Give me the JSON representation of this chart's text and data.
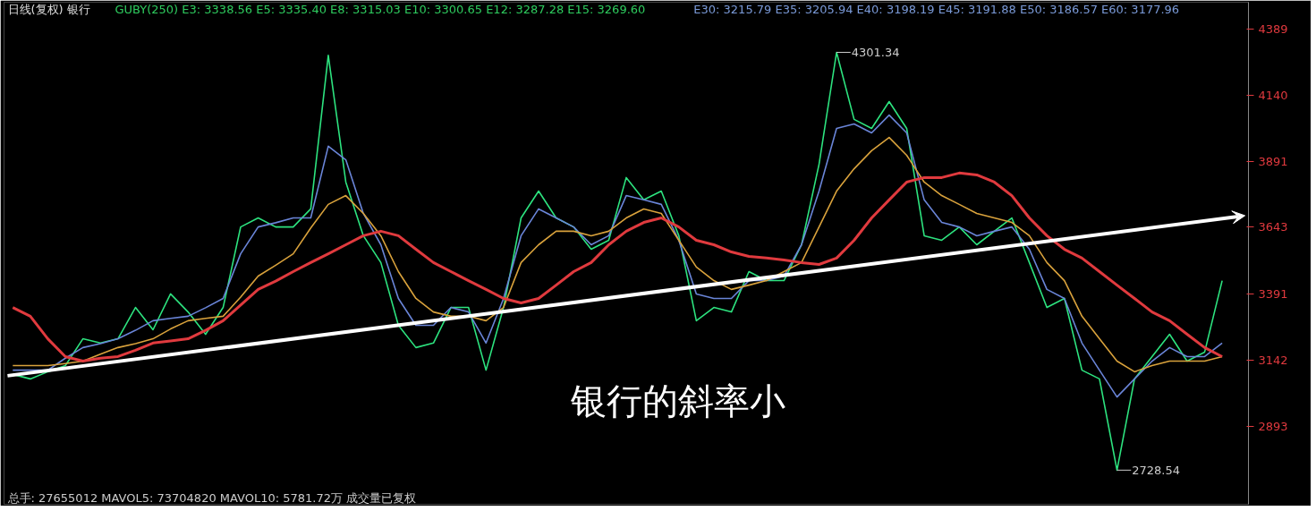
{
  "chart_data": {
    "type": "line",
    "title": "日线(复权)  银行",
    "subtitle": "GUBY(250) E3: 3338.56 E5: 3335.40 E8: 3315.03 E10: 3300.65 E12: 3287.28 E15: 3269.60",
    "xlabel": "总手: 27655012 MAVOL5: 73704820 MAVOL10: 5781.72万  成交量已复权",
    "categories": [
      null,
      null,
      null,
      null,
      null,
      null,
      null,
      null,
      null,
      null,
      null,
      null,
      null,
      null,
      null,
      null,
      null,
      null,
      null,
      null,
      null,
      null,
      null,
      null,
      null,
      null,
      null,
      null,
      null,
      null,
      null,
      null,
      null,
      null,
      null,
      null,
      null,
      null,
      null,
      null,
      null,
      null,
      null,
      null,
      null,
      null,
      null,
      null,
      null,
      null,
      null,
      null,
      null,
      null,
      null,
      null,
      null,
      null,
      null,
      null,
      null,
      null,
      null,
      null,
      null,
      null,
      null,
      null,
      null,
      null
    ],
    "series": [
      {
        "color": "#2de37f",
        "values": [
          3089,
          3072,
          3099,
          3122,
          3223,
          3207,
          3223,
          3341,
          3257,
          3392,
          3324,
          3240,
          3341,
          3644,
          3678,
          3644,
          3644,
          3712,
          4290,
          3813,
          3611,
          3510,
          3274,
          3190,
          3207,
          3341,
          3341,
          3105,
          3341,
          3678,
          3779,
          3678,
          3644,
          3560,
          3594,
          3830,
          3746,
          3779,
          3611,
          3291,
          3341,
          3324,
          3476,
          3442,
          3442,
          3577,
          3880,
          4301.34,
          4049,
          4015,
          4116,
          4015,
          3611,
          3594,
          3644,
          3577,
          3628,
          3678,
          3510,
          3341,
          3375,
          3105,
          3072,
          2728.54,
          3072,
          3156,
          3240,
          3139,
          3173,
          3442
        ]
      },
      {
        "color": "#6a85d8",
        "values": [
          3105,
          3105,
          3105,
          3150,
          3190,
          3205,
          3223,
          3255,
          3291,
          3300,
          3308,
          3340,
          3375,
          3543,
          3644,
          3660,
          3678,
          3678,
          3948,
          3897,
          3695,
          3577,
          3375,
          3274,
          3274,
          3341,
          3324,
          3207,
          3375,
          3611,
          3712,
          3678,
          3644,
          3577,
          3611,
          3762,
          3746,
          3729,
          3594,
          3392,
          3375,
          3375,
          3442,
          3442,
          3459,
          3577,
          3779,
          4015,
          4032,
          3998,
          4065,
          3998,
          3746,
          3661,
          3644,
          3611,
          3628,
          3644,
          3560,
          3409,
          3375,
          3207,
          3105,
          3004,
          3072,
          3139,
          3190,
          3156,
          3156,
          3207
        ]
      },
      {
        "color": "#d9a23c",
        "values": [
          3122,
          3122,
          3122,
          3130,
          3139,
          3165,
          3190,
          3205,
          3223,
          3260,
          3291,
          3300,
          3308,
          3380,
          3459,
          3500,
          3543,
          3640,
          3729,
          3762,
          3695,
          3611,
          3476,
          3375,
          3324,
          3308,
          3308,
          3291,
          3341,
          3510,
          3577,
          3628,
          3628,
          3611,
          3628,
          3678,
          3712,
          3695,
          3594,
          3493,
          3442,
          3409,
          3425,
          3442,
          3476,
          3510,
          3644,
          3779,
          3863,
          3931,
          3981,
          3914,
          3813,
          3762,
          3729,
          3695,
          3678,
          3661,
          3611,
          3510,
          3442,
          3308,
          3223,
          3139,
          3099,
          3122,
          3139,
          3139,
          3139,
          3156
        ]
      },
      {
        "color": "#e03a3e",
        "values": [
          3341,
          3308,
          3223,
          3156,
          3139,
          3150,
          3156,
          3180,
          3207,
          3215,
          3223,
          3255,
          3291,
          3350,
          3409,
          3440,
          3476,
          3510,
          3543,
          3577,
          3611,
          3628,
          3611,
          3560,
          3510,
          3476,
          3442,
          3409,
          3375,
          3358,
          3375,
          3425,
          3476,
          3510,
          3577,
          3628,
          3661,
          3678,
          3644,
          3594,
          3577,
          3550,
          3533,
          3527,
          3520,
          3510,
          3503,
          3527,
          3594,
          3678,
          3746,
          3813,
          3830,
          3830,
          3847,
          3840,
          3813,
          3762,
          3678,
          3611,
          3560,
          3527,
          3476,
          3425,
          3375,
          3324,
          3291,
          3240,
          3190,
          3156
        ]
      }
    ],
    "ylim": [
      2600,
      4490
    ],
    "yticks": [
      2893,
      3142,
      3391,
      3643,
      3891,
      4140,
      4389
    ],
    "tick_labels": "y",
    "grid": false,
    "marker": "none",
    "line_style": "solid",
    "annotations": [
      "E30: 3215.79 E35: 3205.94 E40: 3198.19 E45: 3191.88 E50: 3186.57 E60: 3177.96",
      "银行的斜率小",
      "4301.34",
      "2728.54"
    ]
  }
}
